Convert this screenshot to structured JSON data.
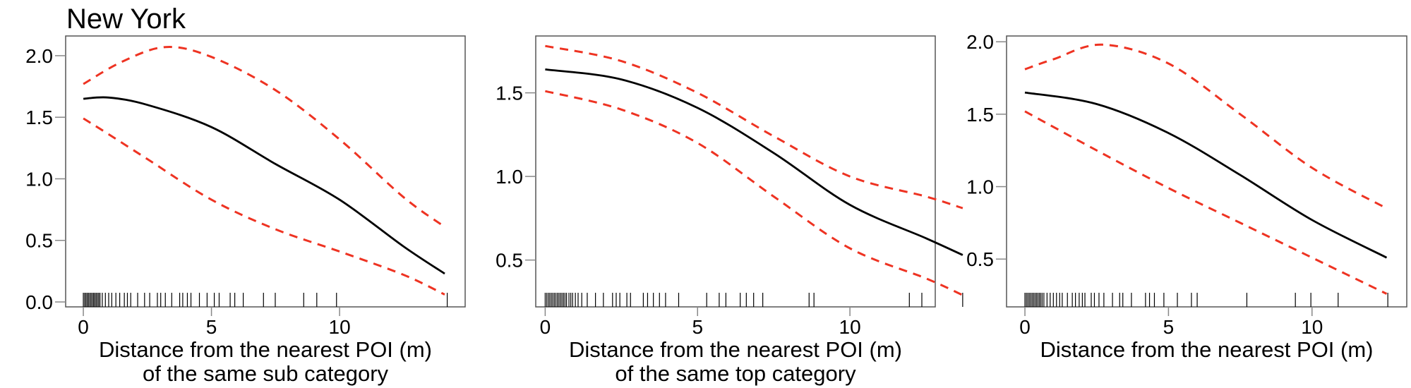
{
  "title": "New York",
  "colors": {
    "fit": "#000000",
    "ci": "#ee3322",
    "rug": "#000000",
    "frame": "#555555",
    "ticks": "#888888"
  },
  "chart_data": [
    {
      "type": "line",
      "xlabel": [
        "Distance from the nearest POI (m)",
        "of the same sub category"
      ],
      "xlim": [
        -0.69,
        14.9
      ],
      "ylim": [
        -0.04,
        2.16
      ],
      "xticks": [
        "0",
        "5",
        "10"
      ],
      "yticks": [
        "0.0",
        "0.5",
        "1.0",
        "1.5",
        "2.0"
      ],
      "grid": false,
      "series": [
        {
          "role": "fit",
          "style": "solid",
          "x": [
            0,
            1,
            2.5,
            5,
            7.5,
            10,
            12.5,
            14.1
          ],
          "y": [
            1.65,
            1.66,
            1.6,
            1.42,
            1.12,
            0.83,
            0.45,
            0.23
          ]
        },
        {
          "role": "upper",
          "style": "dashed",
          "x": [
            0,
            1.5,
            3.2,
            5,
            7.5,
            10,
            12.5,
            14.1
          ],
          "y": [
            1.77,
            1.95,
            2.07,
            1.99,
            1.72,
            1.32,
            0.85,
            0.61
          ]
        },
        {
          "role": "lower",
          "style": "dashed",
          "x": [
            0,
            1,
            2.5,
            5,
            7.5,
            10,
            12.5,
            14.1
          ],
          "y": [
            1.49,
            1.36,
            1.16,
            0.83,
            0.59,
            0.41,
            0.22,
            0.06
          ]
        }
      ],
      "rug": [
        0,
        0.05,
        0.1,
        0.15,
        0.2,
        0.25,
        0.3,
        0.35,
        0.4,
        0.45,
        0.5,
        0.55,
        0.6,
        0.65,
        0.74,
        0.86,
        0.99,
        1.11,
        1.27,
        1.42,
        1.6,
        1.72,
        1.85,
        2.12,
        2.39,
        2.59,
        2.89,
        3.02,
        3.2,
        3.45,
        3.76,
        3.88,
        4.06,
        4.2,
        4.53,
        4.83,
        5.11,
        5.3,
        5.73,
        5.91,
        6.24,
        7.03,
        7.49,
        8.6,
        9.11,
        9.88,
        14.2
      ]
    },
    {
      "type": "line",
      "xlabel": [
        "Distance from the nearest POI (m)",
        "of the same top category"
      ],
      "xlim": [
        -0.31,
        12.8
      ],
      "ylim": [
        0.22,
        1.84
      ],
      "xticks": [
        "0",
        "5",
        "10"
      ],
      "yticks": [
        "0.5",
        "1.0",
        "1.5"
      ],
      "grid": false,
      "series": [
        {
          "role": "fit",
          "style": "solid",
          "x": [
            0,
            2.5,
            5,
            7.5,
            10,
            12.5,
            13.7
          ],
          "y": [
            1.64,
            1.58,
            1.41,
            1.14,
            0.83,
            0.63,
            0.53
          ]
        },
        {
          "role": "upper",
          "style": "dashed",
          "x": [
            0,
            2.5,
            5,
            7.5,
            10,
            12.5,
            13.7
          ],
          "y": [
            1.78,
            1.69,
            1.5,
            1.24,
            1.0,
            0.88,
            0.81
          ]
        },
        {
          "role": "lower",
          "style": "dashed",
          "x": [
            0,
            2.5,
            5,
            7.5,
            10,
            12.5,
            13.7
          ],
          "y": [
            1.51,
            1.4,
            1.2,
            0.88,
            0.57,
            0.39,
            0.29
          ]
        }
      ],
      "rug": [
        0,
        0.05,
        0.1,
        0.15,
        0.2,
        0.25,
        0.3,
        0.35,
        0.4,
        0.45,
        0.5,
        0.55,
        0.6,
        0.65,
        0.7,
        0.78,
        0.84,
        0.9,
        0.99,
        1.08,
        1.2,
        1.38,
        1.65,
        1.91,
        2.21,
        2.33,
        2.45,
        2.68,
        2.8,
        3.22,
        3.36,
        3.55,
        3.75,
        3.95,
        4.38,
        5.3,
        5.71,
        5.93,
        6.4,
        6.6,
        6.84,
        7.14,
        8.66,
        8.82,
        11.95,
        12.36,
        13.7
      ]
    },
    {
      "type": "line",
      "xlabel": [
        "Distance from the nearest POI (m)"
      ],
      "xlim": [
        -0.64,
        13.3
      ],
      "ylim": [
        0.17,
        2.04
      ],
      "xticks": [
        "0",
        "5",
        "10"
      ],
      "yticks": [
        "0.5",
        "1.0",
        "1.5",
        "2.0"
      ],
      "grid": false,
      "series": [
        {
          "role": "fit",
          "style": "solid",
          "x": [
            0,
            2.5,
            5,
            7.5,
            10,
            12.6
          ],
          "y": [
            1.65,
            1.57,
            1.37,
            1.08,
            0.77,
            0.51
          ]
        },
        {
          "role": "upper",
          "style": "dashed",
          "x": [
            0,
            1,
            2.7,
            5,
            7.5,
            10,
            12.6
          ],
          "y": [
            1.81,
            1.88,
            1.98,
            1.85,
            1.5,
            1.13,
            0.85
          ]
        },
        {
          "role": "lower",
          "style": "dashed",
          "x": [
            0,
            2.5,
            5,
            7.5,
            10,
            12.6
          ],
          "y": [
            1.52,
            1.25,
            0.99,
            0.75,
            0.51,
            0.26
          ]
        }
      ],
      "rug": [
        0,
        0.05,
        0.1,
        0.15,
        0.2,
        0.25,
        0.3,
        0.35,
        0.4,
        0.45,
        0.5,
        0.55,
        0.6,
        0.66,
        0.77,
        0.88,
        0.99,
        1.1,
        1.21,
        1.3,
        1.48,
        1.65,
        1.76,
        1.89,
        2.0,
        2.09,
        2.31,
        2.42,
        2.58,
        2.75,
        3.05,
        3.3,
        3.41,
        3.71,
        4.2,
        4.34,
        4.51,
        4.84,
        5.31,
        5.8,
        6.0,
        7.73,
        9.42,
        9.96,
        10.91,
        12.64
      ]
    }
  ]
}
